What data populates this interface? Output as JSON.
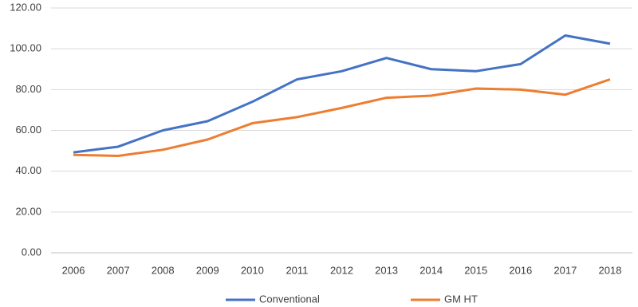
{
  "chart_data": {
    "type": "line",
    "categories": [
      "2006",
      "2007",
      "2008",
      "2009",
      "2010",
      "2011",
      "2012",
      "2013",
      "2014",
      "2015",
      "2016",
      "2017",
      "2018"
    ],
    "series": [
      {
        "name": "Conventional",
        "color": "#4472c4",
        "values": [
          49.2,
          52,
          60,
          64.5,
          74,
          85,
          89,
          95.5,
          90,
          89,
          92.5,
          106.5,
          102.5
        ]
      },
      {
        "name": "GM HT",
        "color": "#ed7d31",
        "values": [
          48,
          47.5,
          50.5,
          55.5,
          63.5,
          66.5,
          71,
          76,
          77,
          80.5,
          80,
          77.5,
          85
        ]
      }
    ],
    "ylim": [
      0,
      120
    ],
    "yticks": [
      {
        "value": 0,
        "label": "0.00"
      },
      {
        "value": 20,
        "label": "20.00"
      },
      {
        "value": 40,
        "label": "40.00"
      },
      {
        "value": 60,
        "label": "60.00"
      },
      {
        "value": 80,
        "label": "80.00"
      },
      {
        "value": 100,
        "label": "100.00"
      },
      {
        "value": 120,
        "label": "120.00"
      }
    ],
    "grid": true,
    "legend": "bottom"
  }
}
